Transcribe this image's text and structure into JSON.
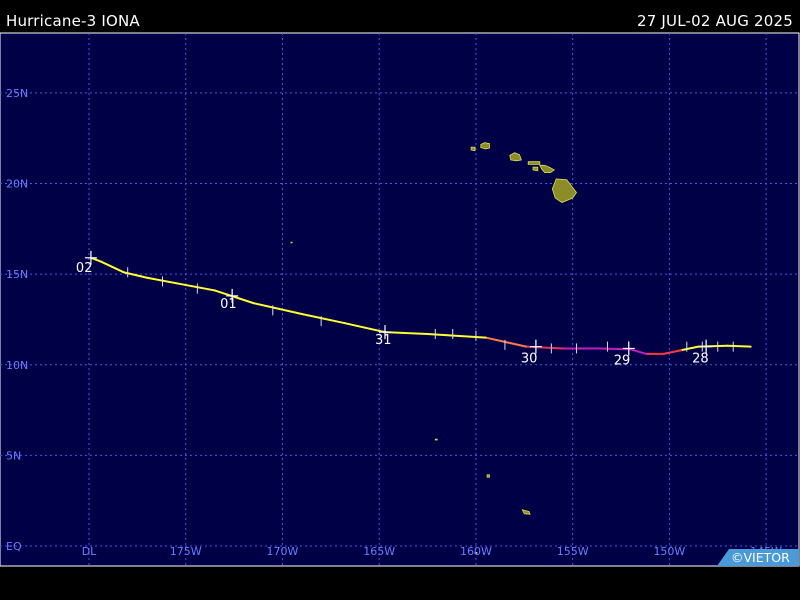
{
  "header": {
    "storm_title": "Hurricane-3 IONA",
    "date_range": "27 JUL-02 AUG 2025"
  },
  "map": {
    "background_color": "#000046",
    "grid_color": "#4a56e8",
    "label_color": "#6f7cff",
    "land_color": "#8c8c28",
    "lat_labels": [
      {
        "lat": 25,
        "text": "25N"
      },
      {
        "lat": 20,
        "text": "20N"
      },
      {
        "lat": 15,
        "text": "15N"
      },
      {
        "lat": 10,
        "text": "10N"
      },
      {
        "lat": 5,
        "text": "5N"
      },
      {
        "lat": 0,
        "text": "EQ"
      }
    ],
    "lon_labels": [
      {
        "lon": -180,
        "text": "DL"
      },
      {
        "lon": -175,
        "text": "175W"
      },
      {
        "lon": -170,
        "text": "170W"
      },
      {
        "lon": -165,
        "text": "165W"
      },
      {
        "lon": -160,
        "text": "160W"
      },
      {
        "lon": -155,
        "text": "155W"
      },
      {
        "lon": -150,
        "text": "150W"
      },
      {
        "lon": -145,
        "text": "145W"
      }
    ],
    "track": [
      {
        "lon": -145.8,
        "lat": 11.0,
        "color": "#ffff33"
      },
      {
        "lon": -147.0,
        "lat": 11.05,
        "color": "#ffff33"
      },
      {
        "lon": -148.5,
        "lat": 11.0,
        "color": "#ffff33"
      },
      {
        "lon": -149.4,
        "lat": 10.8,
        "color": "#ffff33"
      },
      {
        "lon": -150.3,
        "lat": 10.6,
        "color": "#ff3a3a"
      },
      {
        "lon": -151.2,
        "lat": 10.6,
        "color": "#ff3a3a"
      },
      {
        "lon": -152.0,
        "lat": 10.85,
        "color": "#c01ec0"
      },
      {
        "lon": -153.6,
        "lat": 10.9,
        "color": "#c01ec0"
      },
      {
        "lon": -155.5,
        "lat": 10.9,
        "color": "#c01ec0"
      },
      {
        "lon": -157.4,
        "lat": 11.0,
        "color": "#e8305a"
      },
      {
        "lon": -159.5,
        "lat": 11.5,
        "color": "#ff7a4a"
      },
      {
        "lon": -162.5,
        "lat": 11.7,
        "color": "#ffff33"
      },
      {
        "lon": -164.7,
        "lat": 11.8,
        "color": "#ffff33"
      },
      {
        "lon": -166.8,
        "lat": 12.3,
        "color": "#ffff33"
      },
      {
        "lon": -169.0,
        "lat": 12.8,
        "color": "#ffff33"
      },
      {
        "lon": -171.5,
        "lat": 13.4,
        "color": "#ffff33"
      },
      {
        "lon": -173.5,
        "lat": 14.1,
        "color": "#ffff33"
      },
      {
        "lon": -175.5,
        "lat": 14.5,
        "color": "#ffff33"
      },
      {
        "lon": -177.0,
        "lat": 14.8,
        "color": "#ffff33"
      },
      {
        "lon": -178.2,
        "lat": 15.1,
        "color": "#ffff33"
      },
      {
        "lon": -179.4,
        "lat": 15.7,
        "color": "#ffff33"
      },
      {
        "lon": -179.9,
        "lat": 15.9,
        "color": "#ffff33"
      }
    ],
    "six_hour_ticks": [
      {
        "lon": -146.7,
        "lat": 11.0
      },
      {
        "lon": -147.5,
        "lat": 11.0
      },
      {
        "lon": -148.3,
        "lat": 11.0
      },
      {
        "lon": -149.1,
        "lat": 11.0
      },
      {
        "lon": -153.2,
        "lat": 11.0
      },
      {
        "lon": -154.8,
        "lat": 10.9
      },
      {
        "lon": -156.1,
        "lat": 10.9
      },
      {
        "lon": -158.5,
        "lat": 11.1
      },
      {
        "lon": -160.0,
        "lat": 11.6
      },
      {
        "lon": -161.2,
        "lat": 11.7
      },
      {
        "lon": -162.1,
        "lat": 11.7
      },
      {
        "lon": -168.0,
        "lat": 12.4
      },
      {
        "lon": -170.5,
        "lat": 13.0
      },
      {
        "lon": -174.4,
        "lat": 14.2
      },
      {
        "lon": -176.2,
        "lat": 14.6
      },
      {
        "lon": -178.0,
        "lat": 15.1
      }
    ],
    "day_markers": [
      {
        "label": "28",
        "lon": -148.1,
        "lat": 11.0,
        "label_dx": -14,
        "label_dy": 16
      },
      {
        "label": "29",
        "lon": -152.1,
        "lat": 10.9,
        "label_dx": -15,
        "label_dy": 16
      },
      {
        "label": "30",
        "lon": -156.9,
        "lat": 11.0,
        "label_dx": -15,
        "label_dy": 16
      },
      {
        "label": "31",
        "lon": -164.7,
        "lat": 11.8,
        "label_dx": -10,
        "label_dy": 12
      },
      {
        "label": "01",
        "lon": -172.6,
        "lat": 13.8,
        "label_dx": -12,
        "label_dy": 12
      },
      {
        "label": "02",
        "lon": -179.9,
        "lat": 15.9,
        "label_dx": -15,
        "label_dy": 14
      }
    ],
    "islands": [
      {
        "name": "kauai",
        "points": [
          [
            -159.75,
            22.15
          ],
          [
            -159.55,
            22.25
          ],
          [
            -159.3,
            22.2
          ],
          [
            -159.3,
            21.95
          ],
          [
            -159.5,
            21.9
          ],
          [
            -159.75,
            21.98
          ]
        ]
      },
      {
        "name": "niihau",
        "points": [
          [
            -160.25,
            22.0
          ],
          [
            -160.05,
            22.0
          ],
          [
            -160.05,
            21.8
          ],
          [
            -160.25,
            21.85
          ]
        ]
      },
      {
        "name": "oahu",
        "points": [
          [
            -158.25,
            21.55
          ],
          [
            -158.0,
            21.7
          ],
          [
            -157.75,
            21.6
          ],
          [
            -157.65,
            21.3
          ],
          [
            -157.9,
            21.25
          ],
          [
            -158.2,
            21.3
          ]
        ]
      },
      {
        "name": "molokai",
        "points": [
          [
            -157.3,
            21.2
          ],
          [
            -156.7,
            21.2
          ],
          [
            -156.7,
            21.05
          ],
          [
            -157.3,
            21.05
          ]
        ]
      },
      {
        "name": "lanai",
        "points": [
          [
            -157.05,
            20.9
          ],
          [
            -156.8,
            20.9
          ],
          [
            -156.8,
            20.7
          ],
          [
            -157.05,
            20.75
          ]
        ]
      },
      {
        "name": "maui",
        "points": [
          [
            -156.7,
            21.0
          ],
          [
            -156.45,
            21.0
          ],
          [
            -156.2,
            20.9
          ],
          [
            -155.95,
            20.75
          ],
          [
            -156.15,
            20.6
          ],
          [
            -156.45,
            20.6
          ],
          [
            -156.6,
            20.8
          ]
        ]
      },
      {
        "name": "big-island",
        "points": [
          [
            -155.85,
            20.25
          ],
          [
            -155.3,
            20.2
          ],
          [
            -154.8,
            19.5
          ],
          [
            -155.0,
            19.2
          ],
          [
            -155.55,
            18.95
          ],
          [
            -155.9,
            19.2
          ],
          [
            -156.05,
            19.7
          ]
        ]
      },
      {
        "name": "johnston-atoll",
        "points": [
          [
            -169.56,
            16.76
          ],
          [
            -169.5,
            16.76
          ],
          [
            -169.5,
            16.72
          ],
          [
            -169.56,
            16.72
          ]
        ]
      },
      {
        "name": "palmyra",
        "points": [
          [
            -162.1,
            5.9
          ],
          [
            -162.0,
            5.9
          ],
          [
            -162.0,
            5.85
          ],
          [
            -162.1,
            5.85
          ]
        ]
      },
      {
        "name": "tabuaeran",
        "points": [
          [
            -159.42,
            3.93
          ],
          [
            -159.3,
            3.93
          ],
          [
            -159.3,
            3.8
          ],
          [
            -159.42,
            3.8
          ]
        ]
      },
      {
        "name": "kiritimati",
        "points": [
          [
            -157.6,
            2.0
          ],
          [
            -157.25,
            1.9
          ],
          [
            -157.2,
            1.75
          ],
          [
            -157.5,
            1.78
          ]
        ]
      },
      {
        "name": "jarvis",
        "points": [
          [
            -160.05,
            -0.35
          ],
          [
            -159.95,
            -0.35
          ],
          [
            -159.95,
            -0.4
          ],
          [
            -160.05,
            -0.4
          ]
        ]
      }
    ],
    "credit": "©VIETOR",
    "credit_bg": "#4a9ad8"
  }
}
